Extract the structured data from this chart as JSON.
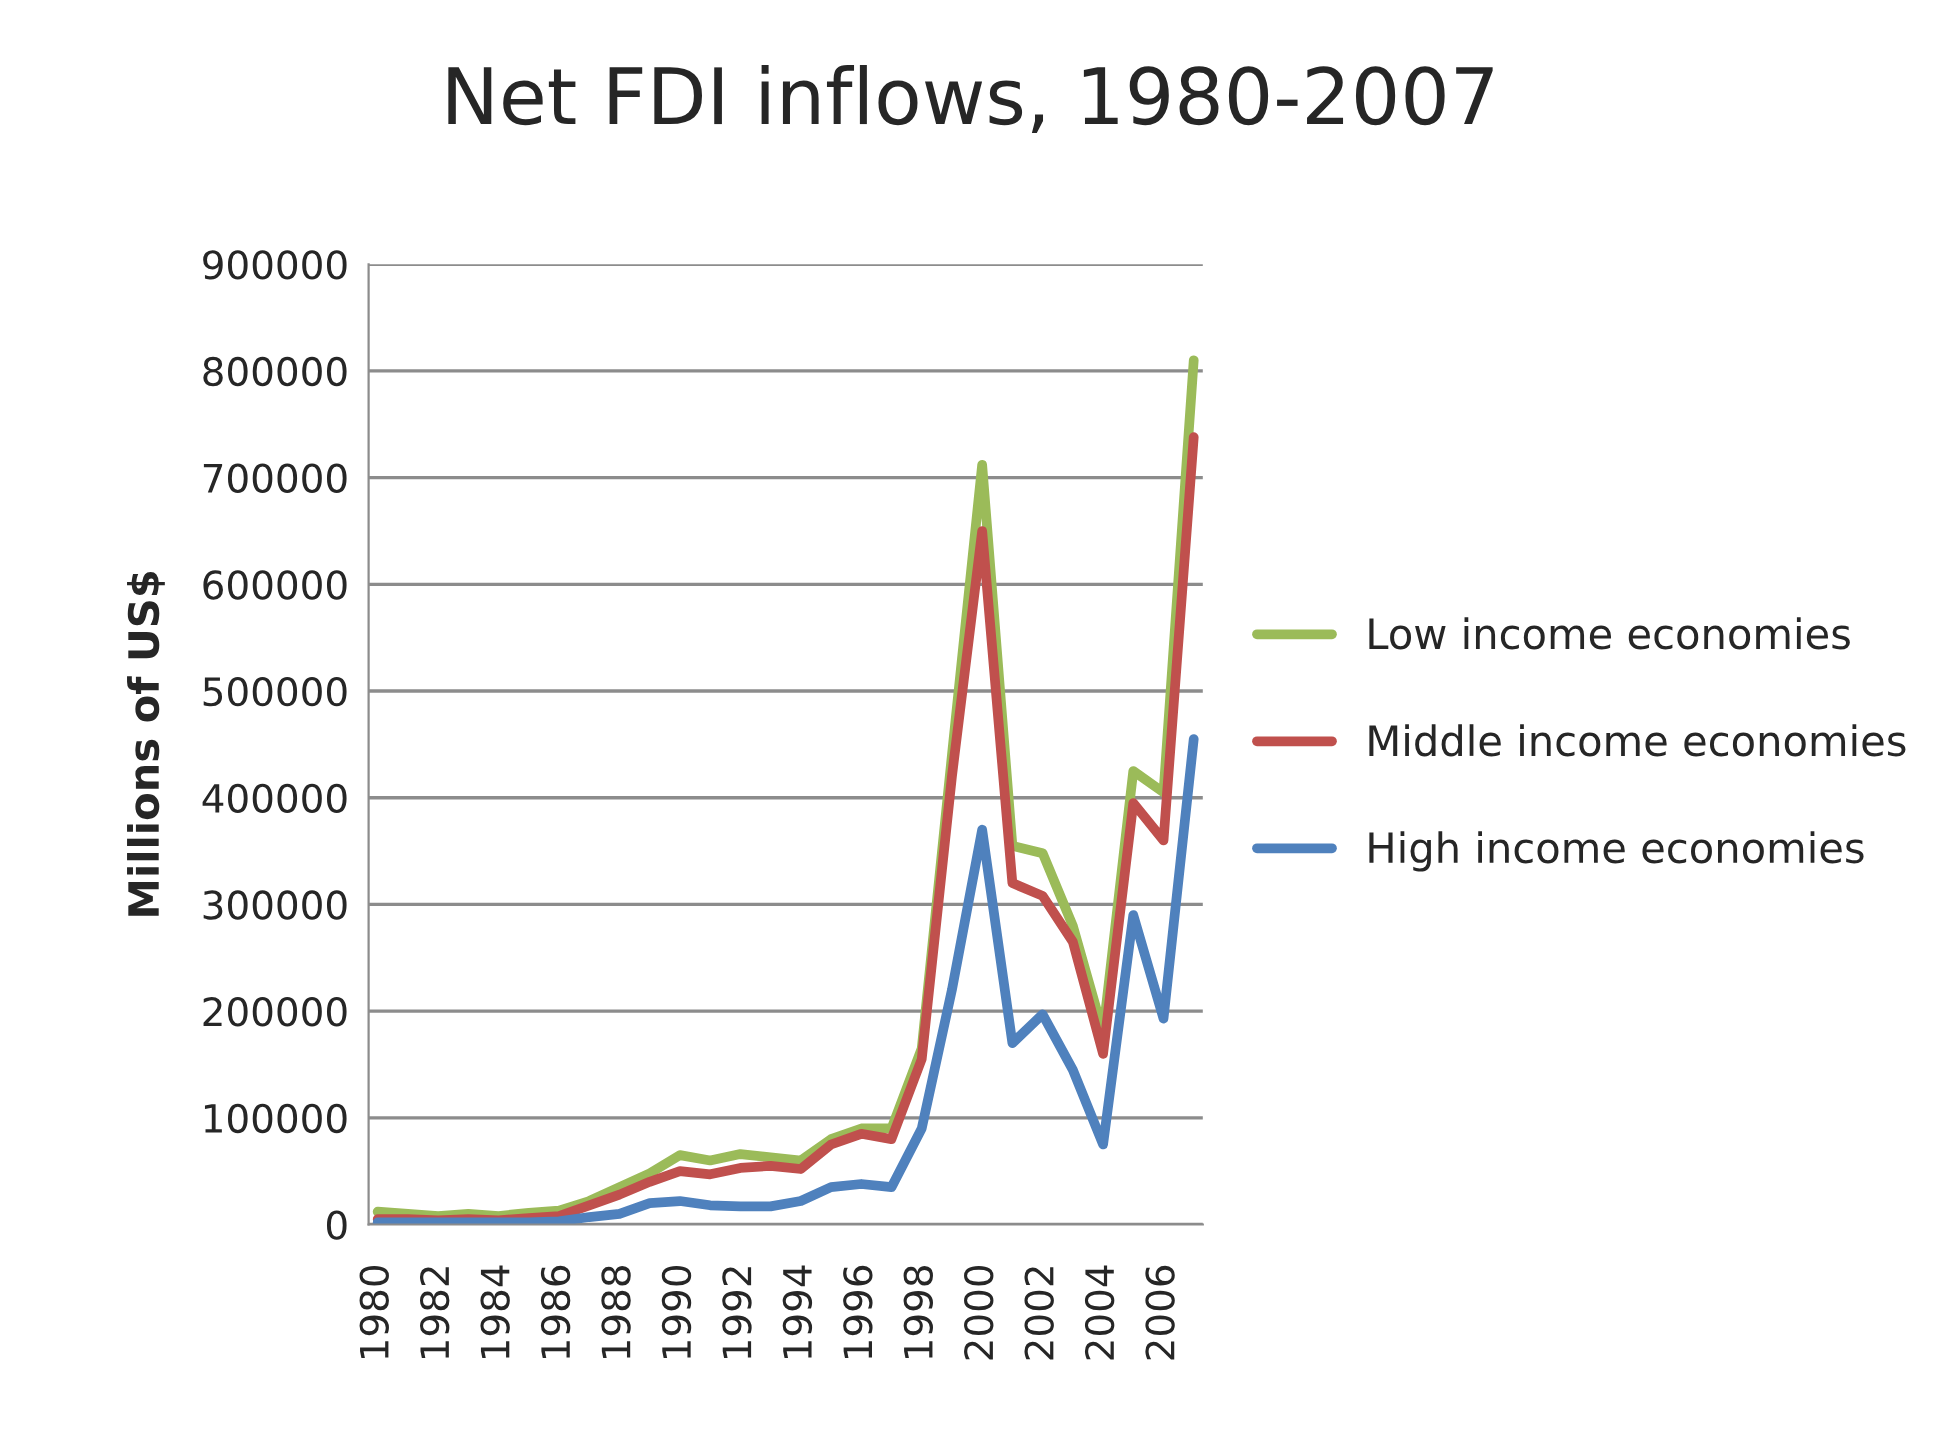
{
  "chart_data": {
    "type": "line",
    "title": "Net FDI inflows, 1980-2007",
    "ylabel": "Millions of US$",
    "categories": [
      "1980",
      null,
      "1982",
      null,
      "1984",
      null,
      "1986",
      null,
      "1988",
      null,
      "1990",
      null,
      "1992",
      null,
      "1994",
      null,
      "1996",
      null,
      "1998",
      null,
      "2000",
      null,
      "2002",
      null,
      "2004",
      null,
      "2006",
      null
    ],
    "series": [
      {
        "name": "Low income economies",
        "color": "#9bbb59",
        "values": [
          12000,
          10000,
          8000,
          10000,
          8000,
          11000,
          13000,
          22000,
          35000,
          48000,
          65000,
          60000,
          66000,
          63000,
          60000,
          80000,
          90000,
          90000,
          165000,
          440000,
          712000,
          355000,
          348000,
          280000,
          180000,
          425000,
          405000,
          810000
        ]
      },
      {
        "name": "Middle income economies",
        "color": "#c0504d",
        "values": [
          5000,
          5000,
          4000,
          5000,
          4000,
          6000,
          8000,
          18000,
          28000,
          40000,
          50000,
          47000,
          53000,
          55000,
          52000,
          75000,
          85000,
          80000,
          155000,
          420000,
          650000,
          320000,
          308000,
          265000,
          160000,
          395000,
          360000,
          738000
        ]
      },
      {
        "name": "High income economies",
        "color": "#4f81bd",
        "values": [
          2000,
          2000,
          2000,
          2000,
          2000,
          2000,
          3000,
          7000,
          10000,
          20000,
          22000,
          18000,
          17000,
          17000,
          22000,
          35000,
          38000,
          35000,
          90000,
          220000,
          370000,
          170000,
          197000,
          145000,
          75000,
          290000,
          193000,
          455000
        ]
      }
    ],
    "ylim": [
      0,
      900000
    ],
    "yticks": [
      0,
      100000,
      200000,
      300000,
      400000,
      500000,
      600000,
      700000,
      800000,
      900000
    ],
    "grid": "y",
    "legend": "right"
  }
}
